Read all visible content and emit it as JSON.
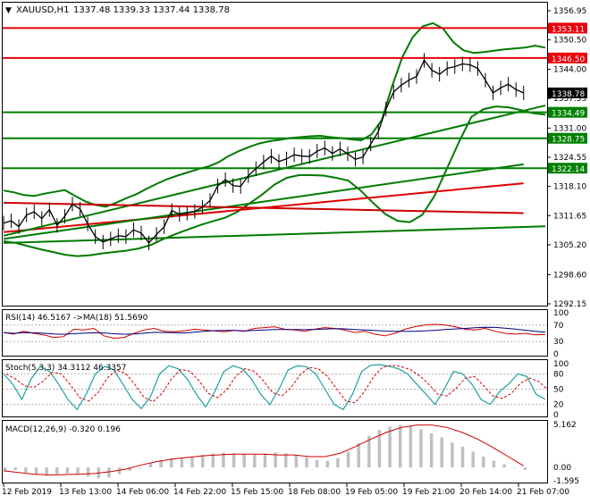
{
  "header": {
    "symbol": "XAUUSD,H1",
    "ohlc": "1337.48 1339.33 1337.44 1338.78"
  },
  "price_axis": {
    "ticks": [
      "1356.95",
      "1350.50",
      "1344.00",
      "1337.55",
      "1331.00",
      "1324.55",
      "1318.10",
      "1311.65",
      "1305.20",
      "1298.60",
      "1292.15"
    ],
    "current_price": "1338.78"
  },
  "levels": [
    {
      "label": "1353.11",
      "color": "#e8000b",
      "value": 1353.11
    },
    {
      "label": "1346.50",
      "color": "#e8000b",
      "value": 1346.5
    },
    {
      "label": "1334.49",
      "color": "#008000",
      "value": 1334.49
    },
    {
      "label": "1328.75",
      "color": "#008000",
      "value": 1328.75
    },
    {
      "label": "1322.14",
      "color": "#008000",
      "value": 1322.14
    }
  ],
  "indicators": {
    "rsi_label": "RSI(14) 46.5167  ->MA(18) 51.5690",
    "rsi_ticks": [
      "100",
      "70",
      "30",
      "0"
    ],
    "stoch_label": "Stoch(5,3,3) 34.3112 46.3357",
    "stoch_ticks": [
      "100",
      "80",
      "50",
      "20",
      "0"
    ],
    "macd_label": "MACD(12,26,9) -0.320 0.196",
    "macd_ticks": [
      "5.162",
      "0.00",
      "-1.595"
    ]
  },
  "time_axis": [
    "12 Feb 2019",
    "13 Feb 13:00",
    "14 Feb 06:00",
    "14 Feb 22:00",
    "15 Feb 15:00",
    "18 Feb 08:00",
    "19 Feb 05:00",
    "19 Feb 21:00",
    "20 Feb 14:00",
    "21 Feb 07:00"
  ],
  "chart_data": {
    "type": "line",
    "closes": [
      1310.0,
      1310.5,
      1309.2,
      1311.8,
      1312.5,
      1311.0,
      1313.0,
      1309.5,
      1311.5,
      1314.2,
      1313.1,
      1309.8,
      1307.0,
      1305.8,
      1306.5,
      1307.2,
      1307.0,
      1308.5,
      1307.8,
      1305.6,
      1307.5,
      1309.2,
      1312.8,
      1311.9,
      1312.2,
      1312.6,
      1313.5,
      1315.0,
      1318.2,
      1319.6,
      1318.3,
      1318.1,
      1320.5,
      1322.0,
      1323.5,
      1324.8,
      1323.6,
      1324.2,
      1325.1,
      1324.8,
      1324.7,
      1325.9,
      1326.6,
      1325.4,
      1326.4,
      1325.3,
      1324.1,
      1324.6,
      1327.5,
      1330.2,
      1335.2,
      1339.0,
      1340.5,
      1341.6,
      1342.4,
      1346.0,
      1343.8,
      1342.9,
      1344.2,
      1344.6,
      1345.2,
      1345.0,
      1344.2,
      1341.6,
      1338.8,
      1339.9,
      1340.7,
      1339.5,
      1338.8
    ],
    "bollinger_upper": [
      1317.2,
      1316.8,
      1316.2,
      1316.0,
      1316.5,
      1316.9,
      1317.3,
      1316.0,
      1314.8,
      1314.0,
      1313.6,
      1314.5,
      1315.5,
      1316.4,
      1317.6,
      1318.7,
      1319.7,
      1320.5,
      1321.2,
      1321.9,
      1322.5,
      1323.4,
      1324.8,
      1325.9,
      1326.8,
      1327.6,
      1328.1,
      1328.4,
      1328.8,
      1329.0,
      1329.2,
      1329.3,
      1329.0,
      1328.8,
      1328.5,
      1328.3,
      1329.6,
      1332.8,
      1340.2,
      1346.6,
      1351.0,
      1353.5,
      1354.2,
      1353.0,
      1350.0,
      1348.2,
      1347.6,
      1347.8,
      1348.1,
      1348.4,
      1348.6,
      1348.8,
      1349.2,
      1348.8
    ],
    "bollinger_lower": [
      1306.0,
      1305.6,
      1304.9,
      1304.2,
      1303.6,
      1303.0,
      1302.7,
      1302.9,
      1303.3,
      1303.6,
      1303.9,
      1304.4,
      1305.2,
      1306.5,
      1307.6,
      1308.6,
      1309.6,
      1310.4,
      1311.2,
      1312.5,
      1314.4,
      1316.3,
      1318.5,
      1320.0,
      1320.6,
      1320.6,
      1320.5,
      1320.0,
      1319.4,
      1317.2,
      1314.5,
      1312.0,
      1310.5,
      1310.2,
      1311.8,
      1316.0,
      1322.0,
      1328.0,
      1333.5,
      1335.2,
      1335.8,
      1335.6,
      1335.0,
      1334.3,
      1334.0
    ],
    "ma_red": [
      1308.0,
      1318.8
    ],
    "ma_green_long": [
      1306.5,
      1323.0
    ],
    "trend_lines": [
      {
        "from": [
          0,
          1305.6
        ],
        "to": [
          1,
          1309.3
        ]
      },
      {
        "from": [
          0,
          1307.2
        ],
        "to": [
          1,
          1336.0
        ]
      }
    ],
    "rsi": [
      52,
      48,
      55,
      50,
      46,
      40,
      42,
      60,
      58,
      62,
      44,
      38,
      40,
      50,
      58,
      62,
      55,
      54,
      56,
      60,
      58,
      56,
      54,
      57,
      55,
      62,
      64,
      66,
      60,
      58,
      55,
      60,
      64,
      62,
      58,
      52,
      55,
      48,
      44,
      50,
      60,
      66,
      70,
      72,
      70,
      66,
      60,
      58,
      62,
      55,
      50,
      48,
      50,
      46,
      47
    ],
    "stoch": [
      80,
      60,
      30,
      70,
      95,
      85,
      60,
      30,
      10,
      40,
      80,
      95,
      88,
      60,
      30,
      12,
      35,
      80,
      96,
      90,
      70,
      40,
      15,
      45,
      85,
      96,
      90,
      70,
      40,
      20,
      50,
      88,
      96,
      94,
      80,
      50,
      20,
      10,
      40,
      85,
      97,
      98,
      95,
      90,
      80,
      60,
      40,
      20,
      50,
      85,
      80,
      60,
      30,
      20,
      45,
      60,
      80,
      75,
      40,
      30
    ],
    "macd_hist": [
      -0.5,
      -0.3,
      -0.6,
      -0.9,
      -1.0,
      -0.8,
      -0.7,
      -0.9,
      -1.1,
      -1.3,
      -1.2,
      -0.8,
      -0.4,
      0.0,
      0.5,
      0.9,
      1.1,
      1.2,
      1.3,
      1.5,
      1.7,
      1.8,
      1.7,
      1.6,
      1.6,
      1.7,
      1.8,
      1.7,
      1.5,
      1.2,
      0.9,
      0.8,
      1.1,
      1.9,
      2.9,
      3.8,
      4.5,
      4.9,
      5.1,
      5.0,
      4.6,
      4.1,
      3.6,
      3.0,
      2.5,
      1.9,
      1.3,
      0.8,
      0.4,
      0.0,
      -0.3
    ],
    "macd_signal": [
      -0.4,
      -0.6,
      -0.8,
      -0.9,
      -0.85,
      -0.8,
      -0.7,
      -0.5,
      -0.2,
      0.3,
      0.7,
      1.0,
      1.2,
      1.4,
      1.5,
      1.6,
      1.6,
      1.6,
      1.5,
      1.5,
      1.3,
      1.3,
      1.7,
      2.5,
      3.4,
      4.2,
      4.8,
      5.1,
      5.1,
      4.8,
      4.2,
      3.4,
      2.4,
      1.3,
      0.2
    ]
  }
}
